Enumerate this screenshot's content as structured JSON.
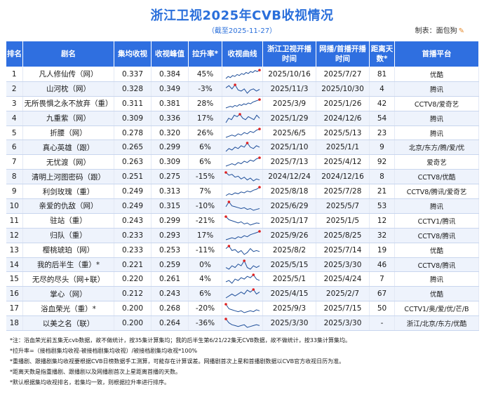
{
  "title": "浙江卫视2025年CVB收视情况",
  "subtitle": "（截至2025-11-27）",
  "maker": "制表：面包狗",
  "headers": [
    "排名",
    "剧名",
    "集均收视",
    "收视峰值",
    "拉升率*",
    "收视曲线",
    "浙江卫视开播时间",
    "网播/首播开播时间",
    "距离天数*",
    "首播平台"
  ],
  "rows": [
    {
      "rank": "1",
      "name": "凡人修仙传（网）",
      "avg": "0.337",
      "peak": "0.384",
      "lift": "45%",
      "zj": "2025/10/16",
      "net": "2025/7/27",
      "days": "81",
      "platform": "优酷"
    },
    {
      "rank": "2",
      "name": "山河枕（网）",
      "avg": "0.328",
      "peak": "0.349",
      "lift": "-3%",
      "zj": "2025/11/3",
      "net": "2025/10/30",
      "days": "4",
      "platform": "腾讯"
    },
    {
      "rank": "3",
      "name": "无所畏惧之永不放弃（重）",
      "avg": "0.311",
      "peak": "0.381",
      "lift": "28%",
      "zj": "2025/3/9",
      "net": "2025/1/26",
      "days": "42",
      "platform": "CCTV8/爱奇艺"
    },
    {
      "rank": "4",
      "name": "九重紫（网）",
      "avg": "0.309",
      "peak": "0.336",
      "lift": "17%",
      "zj": "2025/1/29",
      "net": "2024/12/6",
      "days": "54",
      "platform": "腾讯"
    },
    {
      "rank": "5",
      "name": "折腰（网）",
      "avg": "0.278",
      "peak": "0.320",
      "lift": "26%",
      "zj": "2025/6/5",
      "net": "2025/5/13",
      "days": "23",
      "platform": "腾讯"
    },
    {
      "rank": "6",
      "name": "真心英雄（跟）",
      "avg": "0.265",
      "peak": "0.299",
      "lift": "6%",
      "zj": "2025/1/10",
      "net": "2025/1/1",
      "days": "9",
      "platform": "北京/东方/腾/爱/优"
    },
    {
      "rank": "7",
      "name": "无忧渡（网）",
      "avg": "0.263",
      "peak": "0.309",
      "lift": "6%",
      "zj": "2025/7/13",
      "net": "2025/4/12",
      "days": "92",
      "platform": "爱奇艺"
    },
    {
      "rank": "8",
      "name": "清明上河图密码（跟）",
      "avg": "0.251",
      "peak": "0.275",
      "lift": "-15%",
      "zj": "2024/12/24",
      "net": "2024/12/16",
      "days": "8",
      "platform": "CCTV8/优酷"
    },
    {
      "rank": "9",
      "name": "利剑玫瑰（重）",
      "avg": "0.249",
      "peak": "0.313",
      "lift": "7%",
      "zj": "2025/8/18",
      "net": "2025/7/28",
      "days": "21",
      "platform": "CCTV8/腾讯/爱奇艺"
    },
    {
      "rank": "10",
      "name": "亲爱的仇敌（网）",
      "avg": "0.249",
      "peak": "0.315",
      "lift": "-10%",
      "zj": "2025/6/29",
      "net": "2025/5/7",
      "days": "53",
      "platform": "腾讯"
    },
    {
      "rank": "11",
      "name": "驻站（重）",
      "avg": "0.243",
      "peak": "0.299",
      "lift": "-21%",
      "zj": "2025/1/17",
      "net": "2025/1/5",
      "days": "12",
      "platform": "CCTV1/腾讯"
    },
    {
      "rank": "12",
      "name": "归队（重）",
      "avg": "0.233",
      "peak": "0.293",
      "lift": "17%",
      "zj": "2025/9/26",
      "net": "2025/8/25",
      "days": "32",
      "platform": "CCTV8/腾讯"
    },
    {
      "rank": "13",
      "name": "樱桃琥珀（网）",
      "avg": "0.233",
      "peak": "0.253",
      "lift": "-11%",
      "zj": "2025/8/2",
      "net": "2025/7/14",
      "days": "19",
      "platform": "优酷"
    },
    {
      "rank": "14",
      "name": "我的后半生（重）*",
      "avg": "0.221",
      "peak": "0.259",
      "lift": "0%",
      "zj": "2025/5/15",
      "net": "2025/3/30",
      "days": "46",
      "platform": "CCTV8/腾讯"
    },
    {
      "rank": "15",
      "name": "无尽的尽头（网+联）",
      "avg": "0.220",
      "peak": "0.261",
      "lift": "4%",
      "zj": "2025/5/1",
      "net": "2025/4/24",
      "days": "7",
      "platform": "腾讯"
    },
    {
      "rank": "16",
      "name": "掌心（网）",
      "avg": "0.212",
      "peak": "0.243",
      "lift": "6%",
      "zj": "2025/4/15",
      "net": "2025/2/7",
      "days": "67",
      "platform": "优酷"
    },
    {
      "rank": "17",
      "name": "浴血荣光（重）*",
      "avg": "0.200",
      "peak": "0.268",
      "lift": "-20%",
      "zj": "2025/9/3",
      "net": "2025/7/15",
      "days": "50",
      "platform": "CCTV1/奥/爱/优/芒/B"
    },
    {
      "rank": "18",
      "name": "以美之名（联）",
      "avg": "0.200",
      "peak": "0.264",
      "lift": "-36%",
      "zj": "2025/3/30",
      "net": "2025/3/30",
      "days": "-",
      "platform": "浙江/北京/东方/优酷"
    }
  ],
  "sparklines": [
    [
      0.3,
      0.32,
      0.31,
      0.33,
      0.32,
      0.34,
      0.33,
      0.35,
      0.34,
      0.36,
      0.35,
      0.37,
      0.36,
      0.38,
      0.37,
      0.384
    ],
    [
      0.335,
      0.345,
      0.33,
      0.349,
      0.325,
      0.32,
      0.33,
      0.31,
      0.325,
      0.33,
      0.32,
      0.328
    ],
    [
      0.28,
      0.29,
      0.3,
      0.29,
      0.31,
      0.3,
      0.32,
      0.31,
      0.33,
      0.32,
      0.34,
      0.33,
      0.35,
      0.36,
      0.37,
      0.381
    ],
    [
      0.28,
      0.31,
      0.3,
      0.33,
      0.32,
      0.336,
      0.31,
      0.3,
      0.32,
      0.31,
      0.3,
      0.33,
      0.31
    ],
    [
      0.25,
      0.26,
      0.27,
      0.26,
      0.28,
      0.27,
      0.29,
      0.28,
      0.3,
      0.29,
      0.31,
      0.32
    ],
    [
      0.24,
      0.26,
      0.25,
      0.27,
      0.26,
      0.28,
      0.27,
      0.299,
      0.27,
      0.26,
      0.28,
      0.27
    ],
    [
      0.24,
      0.25,
      0.26,
      0.25,
      0.27,
      0.26,
      0.28,
      0.27,
      0.29,
      0.28,
      0.3,
      0.309
    ],
    [
      0.275,
      0.26,
      0.265,
      0.25,
      0.255,
      0.24,
      0.25,
      0.235,
      0.245,
      0.23,
      0.24,
      0.235
    ],
    [
      0.22,
      0.24,
      0.23,
      0.25,
      0.24,
      0.26,
      0.25,
      0.27,
      0.26,
      0.28,
      0.29,
      0.313
    ],
    [
      0.26,
      0.315,
      0.27,
      0.26,
      0.25,
      0.24,
      0.25,
      0.23,
      0.24,
      0.22,
      0.23,
      0.24
    ],
    [
      0.299,
      0.27,
      0.26,
      0.25,
      0.24,
      0.25,
      0.23,
      0.24,
      0.22,
      0.23,
      0.24,
      0.236
    ],
    [
      0.21,
      0.22,
      0.23,
      0.22,
      0.24,
      0.23,
      0.25,
      0.24,
      0.26,
      0.27,
      0.28,
      0.293
    ],
    [
      0.24,
      0.253,
      0.23,
      0.235,
      0.22,
      0.23,
      0.21,
      0.22,
      0.24,
      0.225,
      0.23,
      0.225
    ],
    [
      0.22,
      0.21,
      0.23,
      0.22,
      0.24,
      0.23,
      0.259,
      0.22,
      0.21,
      0.23,
      0.22,
      0.23
    ],
    [
      0.21,
      0.22,
      0.2,
      0.23,
      0.22,
      0.24,
      0.23,
      0.25,
      0.24,
      0.261,
      0.23,
      0.22
    ],
    [
      0.2,
      0.21,
      0.22,
      0.21,
      0.22,
      0.23,
      0.22,
      0.24,
      0.23,
      0.243,
      0.22,
      0.23
    ],
    [
      0.268,
      0.22,
      0.21,
      0.2,
      0.19,
      0.2,
      0.18,
      0.19,
      0.2,
      0.19,
      0.21,
      0.2
    ],
    [
      0.264,
      0.22,
      0.2,
      0.19,
      0.18,
      0.19,
      0.2,
      0.17,
      0.18,
      0.19,
      0.2,
      0.19
    ]
  ],
  "colors": {
    "header_bg": "#2f6fe0",
    "title": "#2a6fdb",
    "line": "#1f4f9a",
    "peak_dot": "#e02020",
    "stripe": "#eef3fc"
  },
  "notes": [
    "*注：浴血荣光前五集无cvb数据，故不做统计，按35集计算集均；我的后半生第6/21/22集无CVB数据，故不做统计，按33集计算集均。",
    "*拉升率=（接档剧集均收视-被接档剧集均收视）/被接档剧集均收视*100%",
    "*重播剧、跟播剧集均收视要根据CVB日榜数据手工测算，可能存在计算误差。网播剧首次上星和首播剧数据以CVB官方收视日历为准。",
    "*距离天数是指重播剧、跟播剧以及网播剧首次上星距离首播的天数。",
    "*默认根据集均收视排名，若集均一致，则根据拉升率进行排序。"
  ]
}
